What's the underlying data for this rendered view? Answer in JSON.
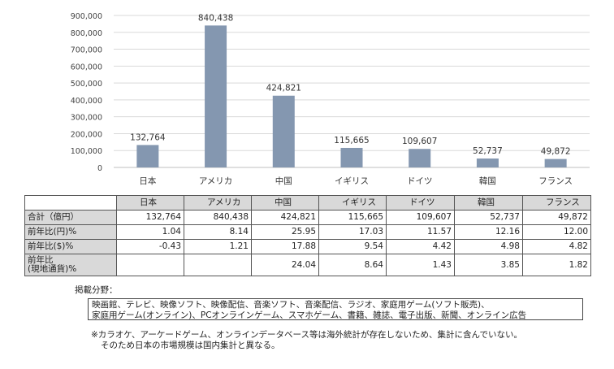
{
  "chart_data": {
    "type": "bar",
    "categories": [
      "日本",
      "アメリカ",
      "中国",
      "イギリス",
      "ドイツ",
      "韓国",
      "フランス"
    ],
    "values": [
      132764,
      840438,
      424821,
      115665,
      109607,
      52737,
      49872
    ],
    "data_labels": [
      "132,764",
      "840,438",
      "424,821",
      "115,665",
      "109,607",
      "52,737",
      "49,872"
    ],
    "y_ticks": [
      "0",
      "100,000",
      "200,000",
      "300,000",
      "400,000",
      "500,000",
      "600,000",
      "700,000",
      "800,000",
      "900,000"
    ],
    "ylim": [
      0,
      900000
    ],
    "grid": true,
    "bar_color": "#8497b0",
    "grid_color": "#d9d9d9"
  },
  "table": {
    "columns": [
      "日本",
      "アメリカ",
      "中国",
      "イギリス",
      "ドイツ",
      "韓国",
      "フランス"
    ],
    "rows": [
      {
        "label": "合計（億円）",
        "values": [
          "132,764",
          "840,438",
          "424,821",
          "115,665",
          "109,607",
          "52,737",
          "49,872"
        ]
      },
      {
        "label": "前年比(円)%",
        "values": [
          "1.04",
          "8.14",
          "25.95",
          "17.03",
          "11.57",
          "12.16",
          "12.00"
        ]
      },
      {
        "label": "前年比($)%",
        "values": [
          "-0.43",
          "1.21",
          "17.88",
          "9.54",
          "4.42",
          "4.98",
          "4.82"
        ]
      },
      {
        "label": "前年比",
        "label2": "(現地通貨)%",
        "values": [
          "",
          "",
          "24.04",
          "8.64",
          "1.43",
          "3.85",
          "1.82"
        ]
      }
    ]
  },
  "coverage": {
    "title": "掲載分野：",
    "line1": "映画館、テレビ、映像ソフト、映像配信、音楽ソフト、音楽配信、ラジオ、家庭用ゲーム(ソフト販売)、",
    "line2": "家庭用ゲーム(オンライン)、PCオンラインゲーム、スマホゲーム、書籍、雑誌、電子出版、新聞、オンライン広告"
  },
  "note": {
    "line1": "※カラオケ、アーケードゲーム、オンラインデータベース等は海外統計が存在しないため、集計に含んでいない。",
    "line2": "そのため日本の市場規模は国内集計と異なる。"
  }
}
